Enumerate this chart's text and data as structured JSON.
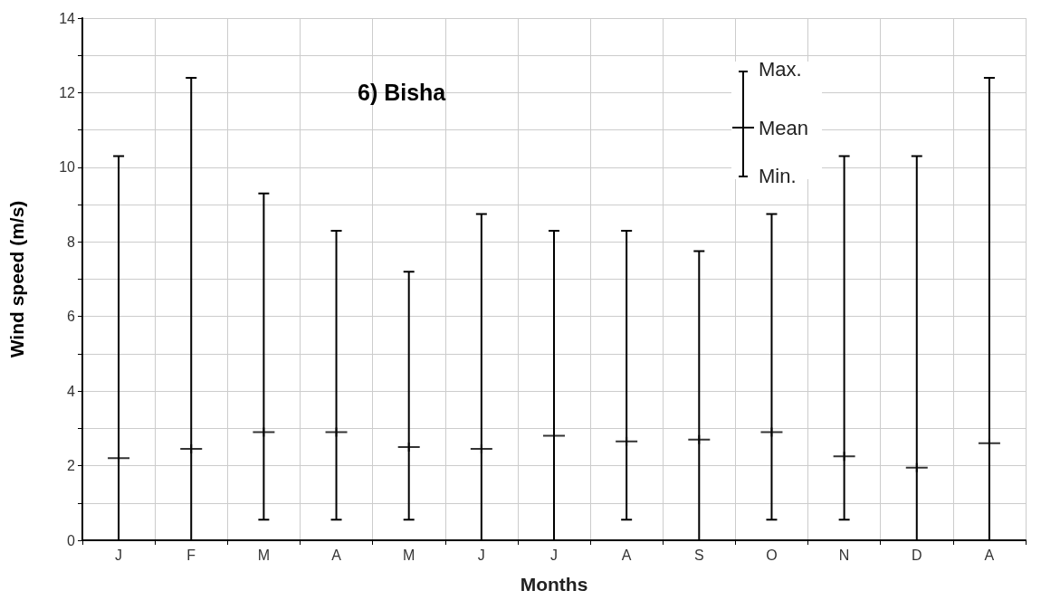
{
  "chart_data": {
    "type": "scatter",
    "title": "6) Bisha",
    "xlabel": "Months",
    "ylabel": "Wind speed (m/s)",
    "categories": [
      "J",
      "F",
      "M",
      "A",
      "M",
      "J",
      "J",
      "A",
      "S",
      "O",
      "N",
      "D",
      "A"
    ],
    "series": [
      {
        "color": "#000000",
        "values": [
          2.2,
          2.45,
          2.9,
          2.9,
          2.5,
          2.45,
          2.8,
          2.65,
          2.7,
          2.9,
          2.25,
          1.95,
          2.6
        ],
        "errors": [
          [
            0,
            10.3
          ],
          [
            0,
            12.4
          ],
          [
            0.55,
            9.3
          ],
          [
            0.55,
            8.3
          ],
          [
            0.55,
            7.2
          ],
          [
            0,
            8.75
          ],
          [
            0,
            8.3
          ],
          [
            0.55,
            8.3
          ],
          [
            0,
            7.75
          ],
          [
            0.55,
            8.75
          ],
          [
            0.55,
            10.3
          ],
          [
            0,
            10.3
          ],
          [
            0,
            12.4
          ]
        ]
      }
    ],
    "ylim": [
      0,
      14
    ],
    "yticks": [
      0,
      {
        "value": 1,
        "label": null
      },
      2,
      {
        "value": 3,
        "label": null
      },
      4,
      {
        "value": 5,
        "label": null
      },
      6,
      {
        "value": 7,
        "label": null
      },
      8,
      {
        "value": 9,
        "label": null
      },
      10,
      {
        "value": 11,
        "label": null
      },
      12,
      {
        "value": 13,
        "label": null
      },
      14
    ],
    "grid": true,
    "marker": "cross",
    "annotations": [
      "Max.",
      "Mean",
      "Min."
    ]
  }
}
